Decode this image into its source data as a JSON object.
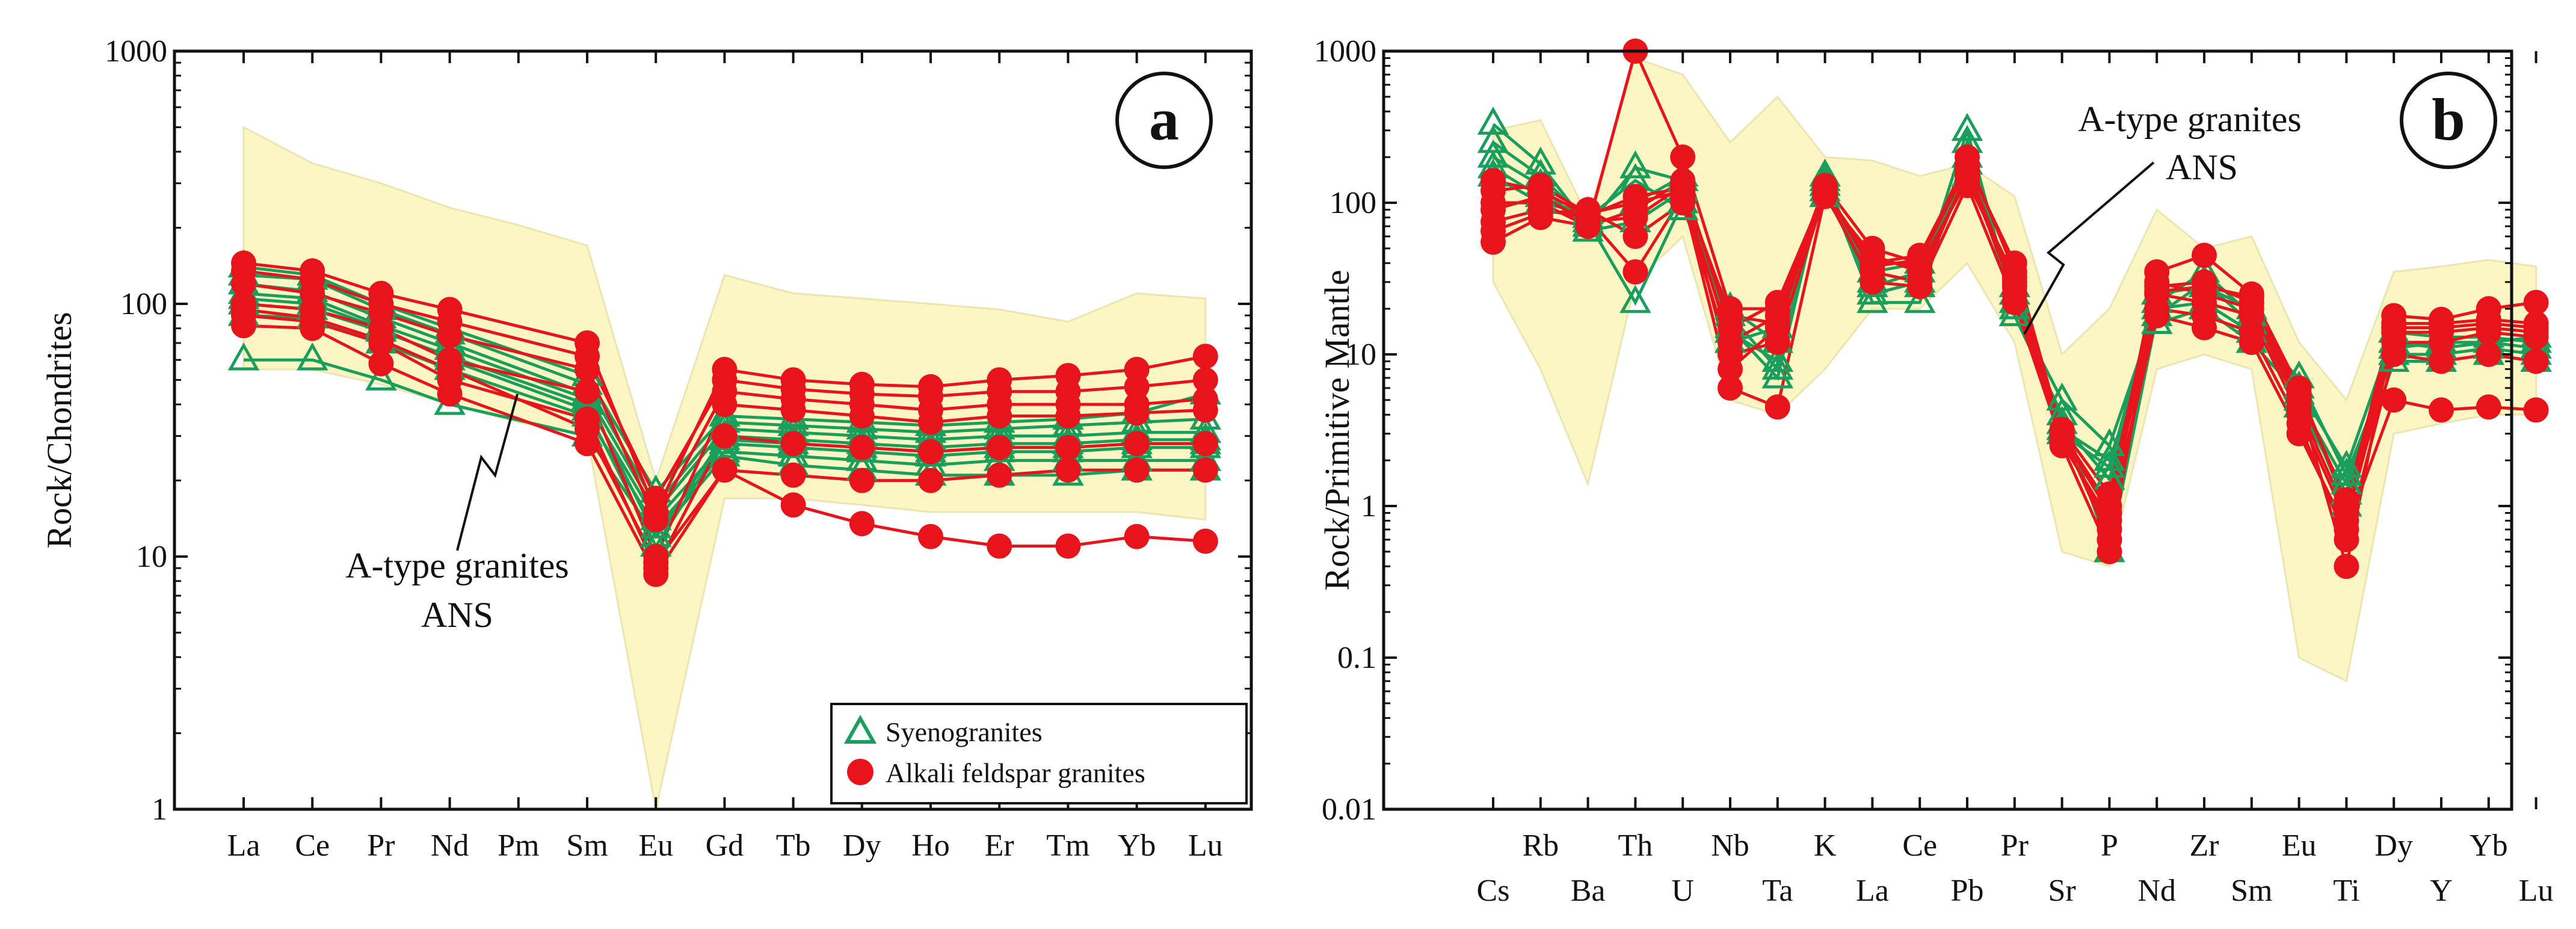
{
  "colors": {
    "syeno": "#1a9e5c",
    "alkali": "#e8141c",
    "field_fill": "#fbf6c4",
    "field_stroke": "#ebe6b0"
  },
  "chart_data": [
    {
      "type": "line",
      "panel_label": "a",
      "title": "",
      "xlabel": "",
      "ylabel": "Rock/Chondrites",
      "yscale": "log",
      "ylim": [
        1,
        1000
      ],
      "y_ticks": [
        "1",
        "10",
        "100",
        "1000"
      ],
      "categories": [
        "La",
        "Ce",
        "Pr",
        "Nd",
        "Pm",
        "Sm",
        "Eu",
        "Gd",
        "Tb",
        "Dy",
        "Ho",
        "Er",
        "Tm",
        "Yb",
        "Lu"
      ],
      "field": {
        "name": "A-type granites ANS",
        "label_lines": [
          "A-type granites",
          "ANS"
        ],
        "upper": [
          500,
          360,
          300,
          240,
          205,
          170,
          20,
          130,
          110,
          105,
          100,
          95,
          85,
          110,
          105
        ],
        "lower": [
          55,
          55,
          48,
          40,
          34,
          30,
          1,
          17,
          17,
          16,
          15,
          15,
          15,
          15,
          14
        ]
      },
      "legend": [
        {
          "label": "Syenogranites",
          "marker": "triangle",
          "series": "syeno"
        },
        {
          "label": "Alkali feldspar granites",
          "marker": "circle",
          "series": "alkali"
        }
      ],
      "series": [
        {
          "group": "syeno",
          "values": [
            60,
            60,
            50,
            40,
            null,
            30,
            12,
            25,
            23,
            22,
            21,
            21,
            21,
            22,
            22
          ]
        },
        {
          "group": "syeno",
          "values": [
            90,
            88,
            70,
            55,
            null,
            36,
            13,
            26,
            25,
            24,
            23,
            24,
            24,
            24,
            24
          ]
        },
        {
          "group": "syeno",
          "values": [
            100,
            95,
            78,
            62,
            null,
            40,
            14,
            28,
            27,
            26,
            25,
            26,
            26,
            27,
            27
          ]
        },
        {
          "group": "syeno",
          "values": [
            110,
            105,
            82,
            66,
            null,
            42,
            12,
            30,
            29,
            28,
            27,
            28,
            28,
            29,
            29
          ]
        },
        {
          "group": "syeno",
          "values": [
            120,
            112,
            88,
            70,
            null,
            44,
            15,
            32,
            31,
            30,
            29,
            30,
            30,
            31,
            31
          ]
        },
        {
          "group": "syeno",
          "values": [
            130,
            125,
            95,
            76,
            null,
            48,
            16,
            34,
            33,
            32,
            31,
            32,
            33,
            34,
            35
          ]
        },
        {
          "group": "syeno",
          "values": [
            140,
            130,
            100,
            80,
            null,
            52,
            18,
            36,
            35,
            34,
            33,
            34,
            35,
            37,
            44
          ]
        },
        {
          "group": "syeno",
          "values": [
            105,
            100,
            80,
            60,
            null,
            38,
            11,
            29,
            28,
            27,
            26,
            27,
            27,
            28,
            28
          ]
        },
        {
          "group": "alkali",
          "values": [
            145,
            135,
            110,
            95,
            null,
            70,
            15,
            55,
            50,
            48,
            47,
            50,
            52,
            55,
            62
          ]
        },
        {
          "group": "alkali",
          "values": [
            135,
            125,
            100,
            85,
            null,
            62,
            17,
            50,
            46,
            44,
            43,
            45,
            45,
            47,
            50
          ]
        },
        {
          "group": "alkali",
          "values": [
            120,
            110,
            92,
            75,
            null,
            55,
            14,
            45,
            42,
            40,
            38,
            40,
            40,
            40,
            42
          ]
        },
        {
          "group": "alkali",
          "values": [
            100,
            95,
            80,
            60,
            null,
            45,
            10,
            40,
            38,
            36,
            34,
            36,
            36,
            37,
            38
          ]
        },
        {
          "group": "alkali",
          "values": [
            90,
            85,
            70,
            50,
            null,
            35,
            9,
            30,
            28,
            27,
            26,
            27,
            27,
            28,
            28
          ]
        },
        {
          "group": "alkali",
          "values": [
            82,
            80,
            58,
            44,
            null,
            28,
            8.5,
            22,
            16,
            13.5,
            12,
            11,
            11,
            12,
            11.5
          ]
        },
        {
          "group": "alkali",
          "values": [
            95,
            88,
            72,
            55,
            null,
            32,
            9.5,
            22,
            21,
            20,
            20,
            21,
            22,
            22,
            22
          ]
        }
      ]
    },
    {
      "type": "line",
      "panel_label": "b",
      "title": "",
      "xlabel": "",
      "ylabel": "Rock/Primitive Mantle",
      "yscale": "log",
      "ylim": [
        0.01,
        1000
      ],
      "y_ticks": [
        "0.01",
        "0.1",
        "1",
        "10",
        "100",
        "1000"
      ],
      "categories": [
        "Cs",
        "Rb",
        "Ba",
        "Th",
        "U",
        "Nb",
        "Ta",
        "K",
        "La",
        "Ce",
        "Pb",
        "Pr",
        "Sr",
        "P",
        "Nd",
        "Zr",
        "Sm",
        "Eu",
        "Ti",
        "Dy",
        "Y",
        "Yb",
        "Lu"
      ],
      "field": {
        "name": "A-type granites ANS",
        "label_lines": [
          "A-type granites",
          "ANS"
        ],
        "upper": [
          300,
          350,
          80,
          900,
          700,
          250,
          500,
          200,
          190,
          150,
          180,
          110,
          10,
          20,
          90,
          50,
          60,
          12,
          5,
          35,
          38,
          42,
          38
        ],
        "lower": [
          30,
          8,
          1.4,
          30,
          60,
          5,
          4,
          8,
          20,
          20,
          40,
          12,
          0.5,
          0.4,
          8,
          10,
          8,
          0.1,
          0.07,
          3,
          3.5,
          4,
          4
        ]
      },
      "legend": [],
      "series": [
        {
          "group": "syeno",
          "values": [
            330,
            180,
            70,
            170,
            140,
            15,
            7,
            150,
            25,
            30,
            300,
            20,
            5,
            2.5,
            20,
            22,
            14,
            7,
            1.6,
            10,
            10,
            11,
            10
          ]
        },
        {
          "group": "syeno",
          "values": [
            250,
            150,
            75,
            22,
            100,
            18,
            8,
            140,
            22,
            22,
            250,
            18,
            4,
            0.5,
            18,
            30,
            16,
            5,
            1.4,
            12,
            11,
            12,
            11
          ]
        },
        {
          "group": "syeno",
          "values": [
            200,
            130,
            65,
            75,
            120,
            14,
            9,
            130,
            30,
            28,
            200,
            25,
            3.5,
            1.5,
            22,
            35,
            18,
            6,
            1.8,
            14,
            13,
            13,
            12
          ]
        },
        {
          "group": "syeno",
          "values": [
            170,
            110,
            80,
            140,
            90,
            20,
            12,
            120,
            28,
            35,
            180,
            22,
            3,
            1.8,
            25,
            28,
            20,
            4.5,
            1.2,
            11,
            12,
            12,
            13
          ]
        },
        {
          "group": "syeno",
          "values": [
            150,
            100,
            85,
            100,
            150,
            12,
            15,
            110,
            35,
            40,
            150,
            28,
            3.2,
            2,
            16,
            20,
            12,
            5.5,
            1,
            9,
            9,
            10,
            9
          ]
        },
        {
          "group": "alkali",
          "values": [
            55,
            80,
            70,
            1000,
            200,
            20,
            20,
            120,
            40,
            45,
            180,
            40,
            3,
            1,
            35,
            45,
            25,
            6,
            1,
            18,
            17,
            20,
            22
          ]
        },
        {
          "group": "alkali",
          "values": [
            75,
            90,
            80,
            35,
            110,
            6,
            4.5,
            110,
            45,
            35,
            150,
            30,
            2.5,
            0.5,
            28,
            30,
            22,
            5,
            0.4,
            15,
            15,
            16,
            15
          ]
        },
        {
          "group": "alkali",
          "values": [
            120,
            130,
            85,
            100,
            120,
            12,
            18,
            130,
            50,
            40,
            200,
            35,
            3,
            0.6,
            25,
            22,
            18,
            4,
            0.8,
            12,
            12,
            14,
            13
          ]
        },
        {
          "group": "alkali",
          "values": [
            90,
            110,
            75,
            80,
            130,
            8,
            15,
            125,
            35,
            30,
            160,
            25,
            2.8,
            0.7,
            20,
            18,
            14,
            3.5,
            0.6,
            10,
            9,
            10,
            9
          ]
        },
        {
          "group": "alkali",
          "values": [
            65,
            85,
            90,
            60,
            100,
            10,
            12,
            115,
            30,
            28,
            130,
            22,
            2.6,
            0.8,
            18,
            15,
            12,
            3,
            0.7,
            5,
            4.3,
            4.5,
            4.3
          ]
        },
        {
          "group": "alkali",
          "values": [
            100,
            100,
            70,
            90,
            140,
            15,
            22,
            120,
            38,
            42,
            170,
            28,
            3.2,
            1.2,
            30,
            25,
            20,
            4.5,
            0.9,
            14,
            14,
            15,
            14
          ]
        },
        {
          "group": "alkali",
          "values": [
            140,
            120,
            82,
            110,
            125,
            18,
            16,
            118,
            42,
            38,
            140,
            32,
            2.9,
            0.9,
            26,
            28,
            24,
            5.5,
            1.1,
            16,
            16,
            17,
            16
          ]
        }
      ]
    }
  ]
}
